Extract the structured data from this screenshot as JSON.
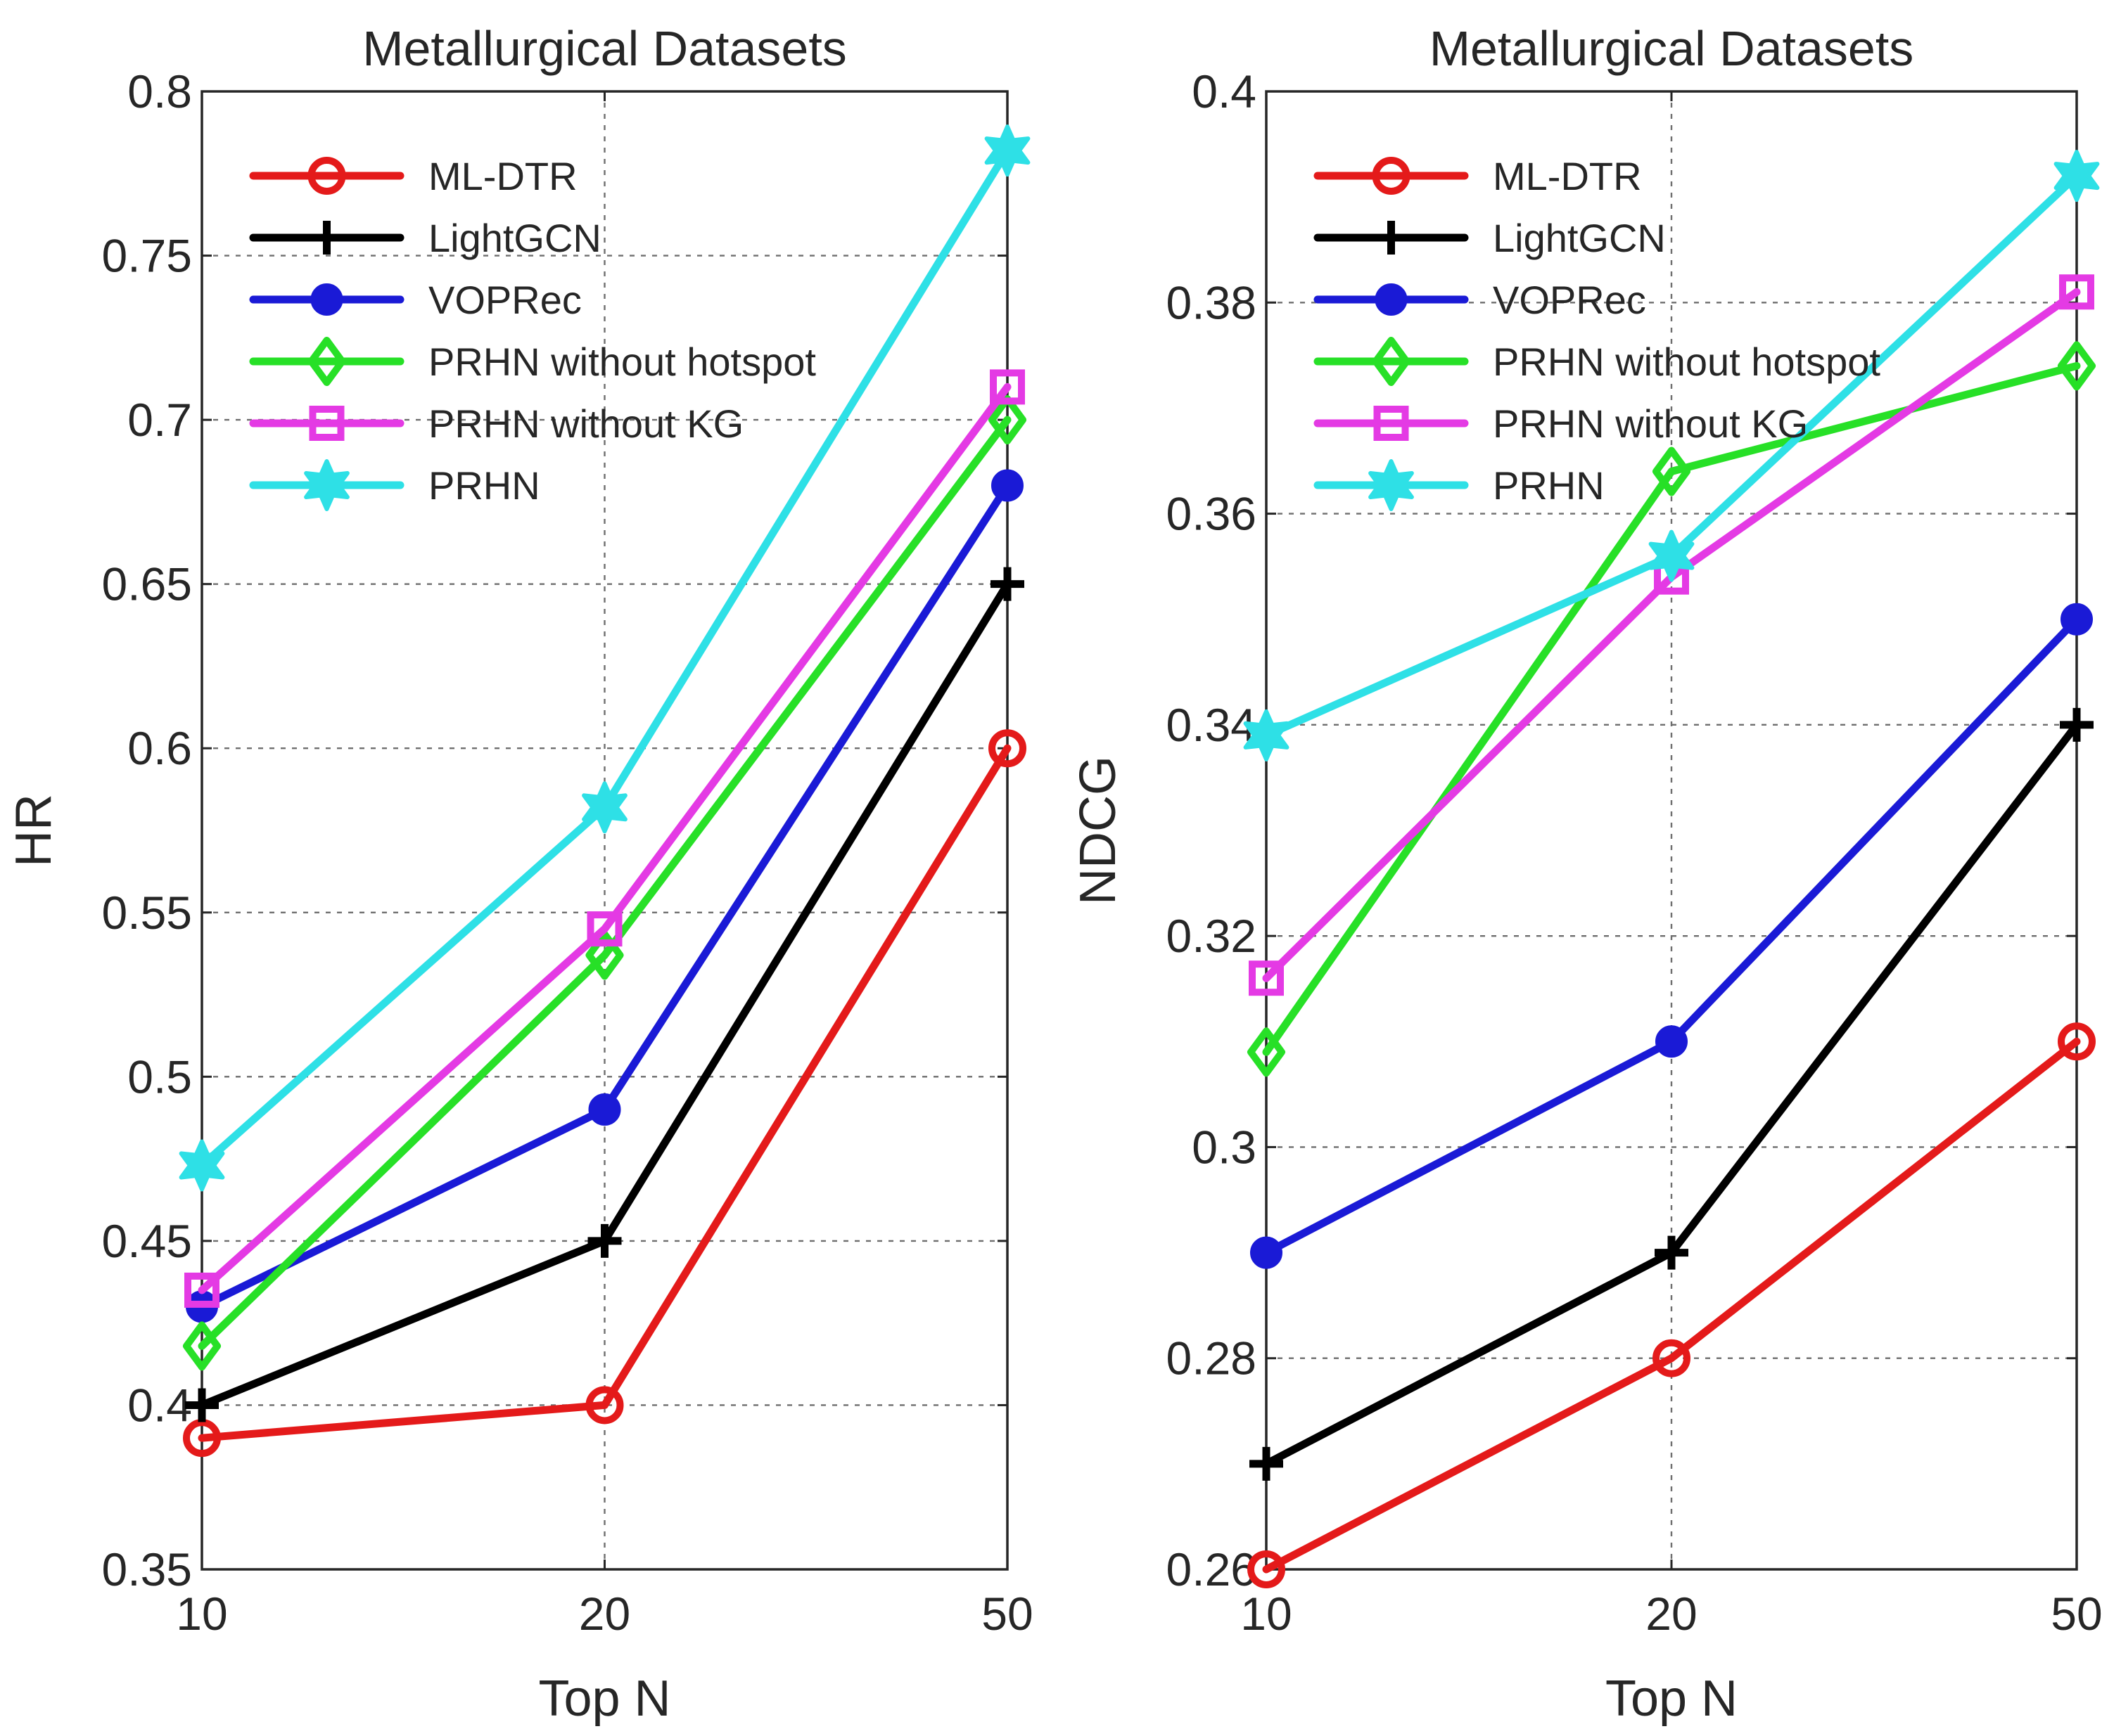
{
  "chart_data": [
    {
      "type": "line",
      "title": "Metallurgical Datasets",
      "xlabel": "Top N",
      "ylabel": "HR",
      "categories": [
        "10",
        "20",
        "50"
      ],
      "ylim": [
        0.35,
        0.8
      ],
      "yticks": [
        0.35,
        0.4,
        0.45,
        0.5,
        0.55,
        0.6,
        0.65,
        0.7,
        0.75,
        0.8
      ],
      "ytick_labels": [
        "0.35",
        "0.4",
        "0.45",
        "0.5",
        "0.55",
        "0.6",
        "0.65",
        "0.7",
        "0.75",
        "0.8"
      ],
      "grid": true,
      "legend_position": "top-left",
      "series": [
        {
          "name": "ML-DTR",
          "color": "#e41a1a",
          "marker": "circle-open",
          "values": [
            0.39,
            0.4,
            0.6
          ]
        },
        {
          "name": "LightGCN",
          "color": "#000000",
          "marker": "plus",
          "values": [
            0.4,
            0.45,
            0.65
          ]
        },
        {
          "name": "VOPRec",
          "color": "#1a1ad6",
          "marker": "circle-filled",
          "values": [
            0.43,
            0.49,
            0.68
          ]
        },
        {
          "name": "PRHN without hotspot",
          "color": "#27e027",
          "marker": "diamond",
          "values": [
            0.418,
            0.537,
            0.7
          ]
        },
        {
          "name": "PRHN without KG",
          "color": "#e43ae4",
          "marker": "square",
          "values": [
            0.435,
            0.545,
            0.71
          ]
        },
        {
          "name": "PRHN",
          "color": "#2ee0e6",
          "marker": "hexagram",
          "values": [
            0.473,
            0.582,
            0.782
          ]
        }
      ]
    },
    {
      "type": "line",
      "title": "Metallurgical Datasets",
      "xlabel": "Top N",
      "ylabel": "NDCG",
      "categories": [
        "10",
        "20",
        "50"
      ],
      "ylim": [
        0.26,
        0.4
      ],
      "yticks": [
        0.26,
        0.28,
        0.3,
        0.32,
        0.34,
        0.36,
        0.38,
        0.4
      ],
      "ytick_labels": [
        "0.26",
        "0.28",
        "0.3",
        "0.32",
        "0.34",
        "0.36",
        "0.38",
        "0.4"
      ],
      "grid": true,
      "legend_position": "top-left",
      "series": [
        {
          "name": "ML-DTR",
          "color": "#e41a1a",
          "marker": "circle-open",
          "values": [
            0.26,
            0.28,
            0.31
          ]
        },
        {
          "name": "LightGCN",
          "color": "#000000",
          "marker": "plus",
          "values": [
            0.27,
            0.29,
            0.34
          ]
        },
        {
          "name": "VOPRec",
          "color": "#1a1ad6",
          "marker": "circle-filled",
          "values": [
            0.29,
            0.31,
            0.35
          ]
        },
        {
          "name": "PRHN without hotspot",
          "color": "#27e027",
          "marker": "diamond",
          "values": [
            0.309,
            0.364,
            0.374
          ]
        },
        {
          "name": "PRHN without KG",
          "color": "#e43ae4",
          "marker": "square",
          "values": [
            0.316,
            0.354,
            0.381
          ]
        },
        {
          "name": "PRHN",
          "color": "#2ee0e6",
          "marker": "hexagram",
          "values": [
            0.339,
            0.356,
            0.392
          ]
        }
      ]
    }
  ]
}
